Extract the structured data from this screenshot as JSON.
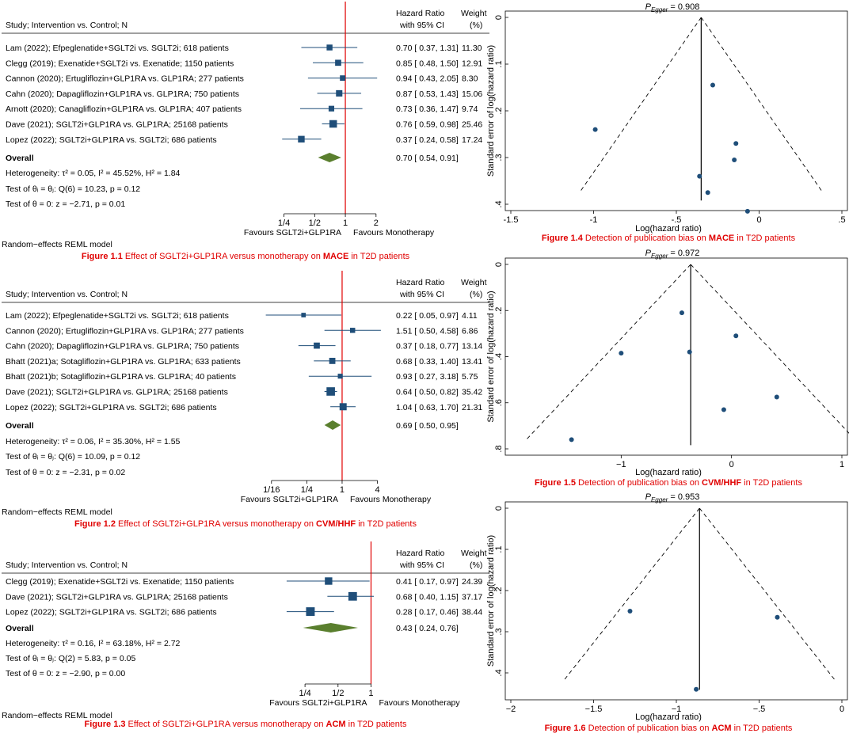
{
  "colors": {
    "marker": "#1f4e79",
    "diamond": "#5a7f2e",
    "null_line": "#e00000",
    "caption": "#e00000",
    "funnel_point": "#1f4e79"
  },
  "chart_data": [
    {
      "type": "forest",
      "id": "fig11",
      "header": {
        "study": "Study; Intervention vs. Control; N",
        "hr1": "Hazard Ratio",
        "hr2": "with 95% CI",
        "w1": "Weight",
        "w2": "(%)"
      },
      "studies": [
        {
          "label": "Lam (2022);  Efpeglenatide+SGLT2i vs. SGLT2i;  618 patients",
          "hr": 0.7,
          "lo": 0.37,
          "hi": 1.31,
          "ci": "0.70 [  0.37,  1.31]",
          "weight": "11.30",
          "w": 11.3
        },
        {
          "label": "Clegg (2019);  Exenatide+SGLT2i vs. Exenatide;  1150 patients",
          "hr": 0.85,
          "lo": 0.48,
          "hi": 1.5,
          "ci": "0.85 [  0.48,  1.50]",
          "weight": "12.91",
          "w": 12.91
        },
        {
          "label": "Cannon (2020);  Ertugliflozin+GLP1RA vs. GLP1RA;  277 patients",
          "hr": 0.94,
          "lo": 0.43,
          "hi": 2.05,
          "ci": "0.94 [  0.43,  2.05]",
          "weight": "8.30",
          "w": 8.3
        },
        {
          "label": "Cahn (2020);  Dapagliflozin+GLP1RA vs. GLP1RA;  750 patients",
          "hr": 0.87,
          "lo": 0.53,
          "hi": 1.43,
          "ci": "0.87 [  0.53,  1.43]",
          "weight": "15.06",
          "w": 15.06
        },
        {
          "label": "Arnott (2020);  Canagliflozin+GLP1RA vs. GLP1RA;  407 patients",
          "hr": 0.73,
          "lo": 0.36,
          "hi": 1.47,
          "ci": "0.73 [  0.36,  1.47]",
          "weight": "9.74",
          "w": 9.74
        },
        {
          "label": "Dave (2021);  SGLT2i+GLP1RA vs. GLP1RA;  25168 patients",
          "hr": 0.76,
          "lo": 0.59,
          "hi": 0.98,
          "ci": "0.76 [  0.59,  0.98]",
          "weight": "25.46",
          "w": 25.46
        },
        {
          "label": "Lopez (2022);  SGLT2i+GLP1RA vs. SGLT2i;  686 patients",
          "hr": 0.37,
          "lo": 0.24,
          "hi": 0.58,
          "ci": "0.37 [  0.24,  0.58]",
          "weight": "17.24",
          "w": 17.24
        }
      ],
      "overall": {
        "label": "Overall",
        "hr": 0.7,
        "lo": 0.54,
        "hi": 0.91,
        "ci": "0.70 [  0.54,  0.91]"
      },
      "heterogeneity": "Heterogeneity: τ² = 0.05, I² = 45.52%, H² = 1.84",
      "test1": "Test of θᵢ = θⱼ: Q(6) = 10.23, p = 0.12",
      "test2": "Test of θ = 0: z = −2.71, p = 0.01",
      "ticks": [
        {
          "v": 0.25,
          "l": "1/4"
        },
        {
          "v": 0.5,
          "l": "1/2"
        },
        {
          "v": 1,
          "l": "1"
        },
        {
          "v": 2,
          "l": "2"
        }
      ],
      "fav_left": "Favours SGLT2i+GLP1RA",
      "fav_right": "Favours Monotherapy",
      "model": "Random−effects REML model",
      "caption": {
        "pre": "Figure 1.1",
        "mid": " Effect of SGLT2i+GLP1RA versus monotherapy on ",
        "bold": "MACE",
        "post": " in T2D patients"
      }
    },
    {
      "type": "forest",
      "id": "fig12",
      "header": {
        "study": "Study; Intervention vs. Control; N",
        "hr1": "Hazard Ratio",
        "hr2": "with 95% CI",
        "w1": "Weight",
        "w2": "(%)"
      },
      "studies": [
        {
          "label": "Lam (2022);  Efpeglenatide+SGLT2i vs. SGLT2i;  618 patients",
          "hr": 0.22,
          "lo": 0.05,
          "hi": 0.97,
          "ci": "0.22 [  0.05,  0.97]",
          "weight": "4.11",
          "w": 4.11
        },
        {
          "label": "Cannon (2020);  Ertugliflozin+GLP1RA vs. GLP1RA;  277 patients",
          "hr": 1.51,
          "lo": 0.5,
          "hi": 4.58,
          "ci": "1.51 [  0.50,  4.58]",
          "weight": "6.86",
          "w": 6.86
        },
        {
          "label": "Cahn (2020);  Dapagliflozin+GLP1RA vs. GLP1RA;  750 patients",
          "hr": 0.37,
          "lo": 0.18,
          "hi": 0.77,
          "ci": "0.37 [  0.18,  0.77]",
          "weight": "13.14",
          "w": 13.14
        },
        {
          "label": "Bhatt (2021)a;  Sotagliflozin+GLP1RA vs. GLP1RA;  633 patients",
          "hr": 0.68,
          "lo": 0.33,
          "hi": 1.4,
          "ci": "0.68 [  0.33,  1.40]",
          "weight": "13.41",
          "w": 13.41
        },
        {
          "label": "Bhatt (2021)b;  Sotagliflozin+GLP1RA vs. GLP1RA;  40 patients",
          "hr": 0.93,
          "lo": 0.27,
          "hi": 3.18,
          "ci": "0.93 [  0.27,  3.18]",
          "weight": "5.75",
          "w": 5.75
        },
        {
          "label": "Dave (2021);  SGLT2i+GLP1RA vs. GLP1RA;  25168 patients",
          "hr": 0.64,
          "lo": 0.5,
          "hi": 0.82,
          "ci": "0.64 [  0.50,  0.82]",
          "weight": "35.42",
          "w": 35.42
        },
        {
          "label": "Lopez (2022);  SGLT2i+GLP1RA vs. SGLT2i;  686 patients",
          "hr": 1.04,
          "lo": 0.63,
          "hi": 1.7,
          "ci": "1.04 [  0.63,  1.70]",
          "weight": "21.31",
          "w": 21.31
        }
      ],
      "overall": {
        "label": "Overall",
        "hr": 0.69,
        "lo": 0.5,
        "hi": 0.95,
        "ci": "0.69 [  0.50,  0.95]"
      },
      "heterogeneity": "Heterogeneity: τ² = 0.06, I² = 35.30%, H² = 1.55",
      "test1": "Test of θᵢ = θⱼ: Q(6) = 10.09, p = 0.12",
      "test2": "Test of θ = 0: z = −2.31, p = 0.02",
      "ticks": [
        {
          "v": 0.0625,
          "l": "1/16"
        },
        {
          "v": 0.25,
          "l": "1/4"
        },
        {
          "v": 1,
          "l": "1"
        },
        {
          "v": 4,
          "l": "4"
        }
      ],
      "fav_left": "Favours SGLT2i+GLP1RA",
      "fav_right": "Favours Monotherapy",
      "model": "Random−effects REML model",
      "caption": {
        "pre": "Figure 1.2",
        "mid": " Effect of SGLT2i+GLP1RA versus monotherapy on ",
        "bold": "CVM/HHF",
        "post": " in T2D patients"
      }
    },
    {
      "type": "forest",
      "id": "fig13",
      "header": {
        "study": "Study; Intervention vs. Control; N",
        "hr1": "Hazard Ratio",
        "hr2": "with 95% CI",
        "w1": "Weight",
        "w2": "(%)"
      },
      "studies": [
        {
          "label": "Clegg (2019);  Exenatide+SGLT2i vs. Exenatide;  1150 patients",
          "hr": 0.41,
          "lo": 0.17,
          "hi": 0.97,
          "ci": "0.41 [  0.17,  0.97]",
          "weight": "24.39",
          "w": 24.39
        },
        {
          "label": "Dave (2021);  SGLT2i+GLP1RA vs. GLP1RA;  25168 patients",
          "hr": 0.68,
          "lo": 0.4,
          "hi": 1.15,
          "ci": "0.68 [  0.40,  1.15]",
          "weight": "37.17",
          "w": 37.17
        },
        {
          "label": "Lopez (2022);  SGLT2i+GLP1RA vs. SGLT2i;  686 patients",
          "hr": 0.28,
          "lo": 0.17,
          "hi": 0.46,
          "ci": "0.28 [  0.17,  0.46]",
          "weight": "38.44",
          "w": 38.44
        }
      ],
      "overall": {
        "label": "Overall",
        "hr": 0.43,
        "lo": 0.24,
        "hi": 0.76,
        "ci": "0.43 [  0.24,  0.76]"
      },
      "heterogeneity": "Heterogeneity: τ² = 0.16, I² = 63.18%, H² = 2.72",
      "test1": "Test of θᵢ = θⱼ: Q(2) = 5.83, p = 0.05",
      "test2": "Test of θ = 0: z = −2.90, p = 0.00",
      "ticks": [
        {
          "v": 0.25,
          "l": "1/4"
        },
        {
          "v": 0.5,
          "l": "1/2"
        },
        {
          "v": 1,
          "l": "1"
        }
      ],
      "fav_left": "Favours SGLT2i+GLP1RA",
      "fav_right": "Favours Monotherapy",
      "model": "Random−effects REML model",
      "caption": {
        "pre": "Figure 1.3",
        "mid": "  Effect of SGLT2i+GLP1RA versus monotherapy on ",
        "bold": "ACM",
        "post": "  in T2D patients"
      }
    },
    {
      "type": "funnel",
      "id": "fig14",
      "title": "P_Egger = 0.908",
      "p_label": "P",
      "p_sub": "Egger",
      "p_value": " = 0.908",
      "xlabel": "Log(hazard ratio)",
      "ylabel": "Standard error of log(hazard ratio)",
      "xlim": [
        -1.5,
        0.5
      ],
      "ylim": [
        0,
        0.4
      ],
      "xticks": [
        {
          "v": -1.5,
          "l": "-1.5"
        },
        {
          "v": -1,
          "l": "-1"
        },
        {
          "v": -0.5,
          "l": "-.5"
        },
        {
          "v": 0,
          "l": "0"
        },
        {
          "v": 0.5,
          "l": ".5"
        }
      ],
      "yticks": [
        {
          "v": 0,
          "l": "0"
        },
        {
          "v": 0.1,
          "l": ".1"
        },
        {
          "v": 0.2,
          "l": ".2"
        },
        {
          "v": 0.3,
          "l": ".3"
        },
        {
          "v": 0.4,
          "l": ".4"
        }
      ],
      "center": -0.35,
      "points": [
        {
          "x": -0.28,
          "y": 0.145
        },
        {
          "x": -0.99,
          "y": 0.24
        },
        {
          "x": -0.14,
          "y": 0.27
        },
        {
          "x": -0.15,
          "y": 0.305
        },
        {
          "x": -0.36,
          "y": 0.34
        },
        {
          "x": -0.31,
          "y": 0.375
        },
        {
          "x": -0.07,
          "y": 0.415
        }
      ],
      "caption": {
        "pre": "Figure 1.4",
        "mid": " Detection of publication bias on ",
        "bold": "MACE",
        "post": " in T2D patients"
      }
    },
    {
      "type": "funnel",
      "id": "fig15",
      "title": "P_Egger = 0.972",
      "p_label": "P",
      "p_sub": "Egger",
      "p_value": " = 0.972",
      "xlabel": "Log(hazard ratio)",
      "ylabel": "Standard error of log(hazard ratio)",
      "xlim": [
        -2,
        1
      ],
      "ylim": [
        0,
        0.8
      ],
      "xticks": [
        {
          "v": -1,
          "l": "−1"
        },
        {
          "v": 0,
          "l": "0"
        },
        {
          "v": 1,
          "l": "1"
        }
      ],
      "yticks": [
        {
          "v": 0,
          "l": "0"
        },
        {
          "v": 0.2,
          "l": ".2"
        },
        {
          "v": 0.4,
          "l": ".4"
        },
        {
          "v": 0.6,
          "l": ".6"
        },
        {
          "v": 0.8,
          "l": ".8"
        }
      ],
      "center": -0.37,
      "points": [
        {
          "x": -0.45,
          "y": 0.21
        },
        {
          "x": 0.04,
          "y": 0.31
        },
        {
          "x": -1.0,
          "y": 0.385
        },
        {
          "x": -0.38,
          "y": 0.38
        },
        {
          "x": 0.41,
          "y": 0.575
        },
        {
          "x": -0.07,
          "y": 0.63
        },
        {
          "x": -1.45,
          "y": 0.76
        }
      ],
      "caption": {
        "pre": "Figure 1.5",
        "mid": " Detection of publication bias on ",
        "bold": "CVM/HHF",
        "post": " in T2D patients"
      }
    },
    {
      "type": "funnel",
      "id": "fig16",
      "title": "P_Egger = 0.953",
      "p_label": "P",
      "p_sub": "Egger",
      "p_value": " = 0.953",
      "xlabel": "Log(hazard ratio)",
      "ylabel": "Standard error of log(hazard ratio)",
      "xlim": [
        -2,
        0
      ],
      "ylim": [
        0,
        0.45
      ],
      "xticks": [
        {
          "v": -2,
          "l": "−2"
        },
        {
          "v": -1.5,
          "l": "−1.5"
        },
        {
          "v": -1,
          "l": "−1"
        },
        {
          "v": -0.5,
          "l": "−.5"
        },
        {
          "v": 0,
          "l": "0"
        }
      ],
      "yticks": [
        {
          "v": 0,
          "l": "0"
        },
        {
          "v": 0.1,
          "l": ".1"
        },
        {
          "v": 0.2,
          "l": ".2"
        },
        {
          "v": 0.3,
          "l": ".3"
        },
        {
          "v": 0.4,
          "l": ".4"
        }
      ],
      "center": -0.86,
      "points": [
        {
          "x": -1.28,
          "y": 0.25
        },
        {
          "x": -0.39,
          "y": 0.265
        },
        {
          "x": -0.88,
          "y": 0.44
        }
      ],
      "caption": {
        "pre": "Figure 1.6",
        "mid": " Detection of publication bias on ",
        "bold": "ACM",
        "post": " in T2D patients"
      }
    }
  ]
}
